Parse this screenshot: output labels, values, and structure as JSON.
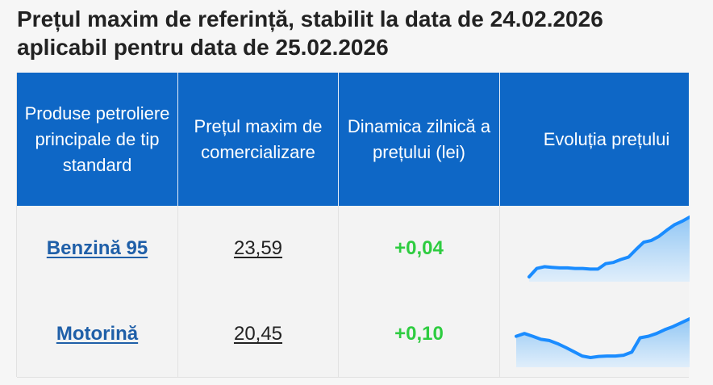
{
  "title": {
    "line1": "Prețul maxim de referință, stabilit la data de 24.02.2026",
    "line2": "aplicabil pentru data de 25.02.2026"
  },
  "table": {
    "headers": [
      "Produse petroliere principale de tip standard",
      "Prețul maxim de comercializare",
      "Dinamica zilnică a prețului (lei)",
      "Evoluția prețului"
    ],
    "rows": [
      {
        "product": "Benzină 95",
        "price": "23,59",
        "delta": "+0,04",
        "trend": [
          0.0,
          0.14,
          0.17,
          0.16,
          0.15,
          0.15,
          0.14,
          0.14,
          0.13,
          0.13,
          0.22,
          0.24,
          0.29,
          0.33,
          0.46,
          0.58,
          0.61,
          0.68,
          0.78,
          0.87,
          0.93,
          1.0
        ]
      },
      {
        "product": "Motorină",
        "price": "20,45",
        "delta": "+0,10",
        "trend": [
          0.55,
          0.62,
          0.55,
          0.47,
          0.44,
          0.36,
          0.26,
          0.15,
          0.04,
          0.0,
          0.03,
          0.04,
          0.04,
          0.06,
          0.14,
          0.51,
          0.55,
          0.62,
          0.72,
          0.8,
          0.9,
          1.0
        ]
      }
    ]
  },
  "colors": {
    "header_bg": "#0e67c6",
    "link": "#1f5fa8",
    "positive": "#2ecc40",
    "spark_line": "#1a8cff"
  }
}
